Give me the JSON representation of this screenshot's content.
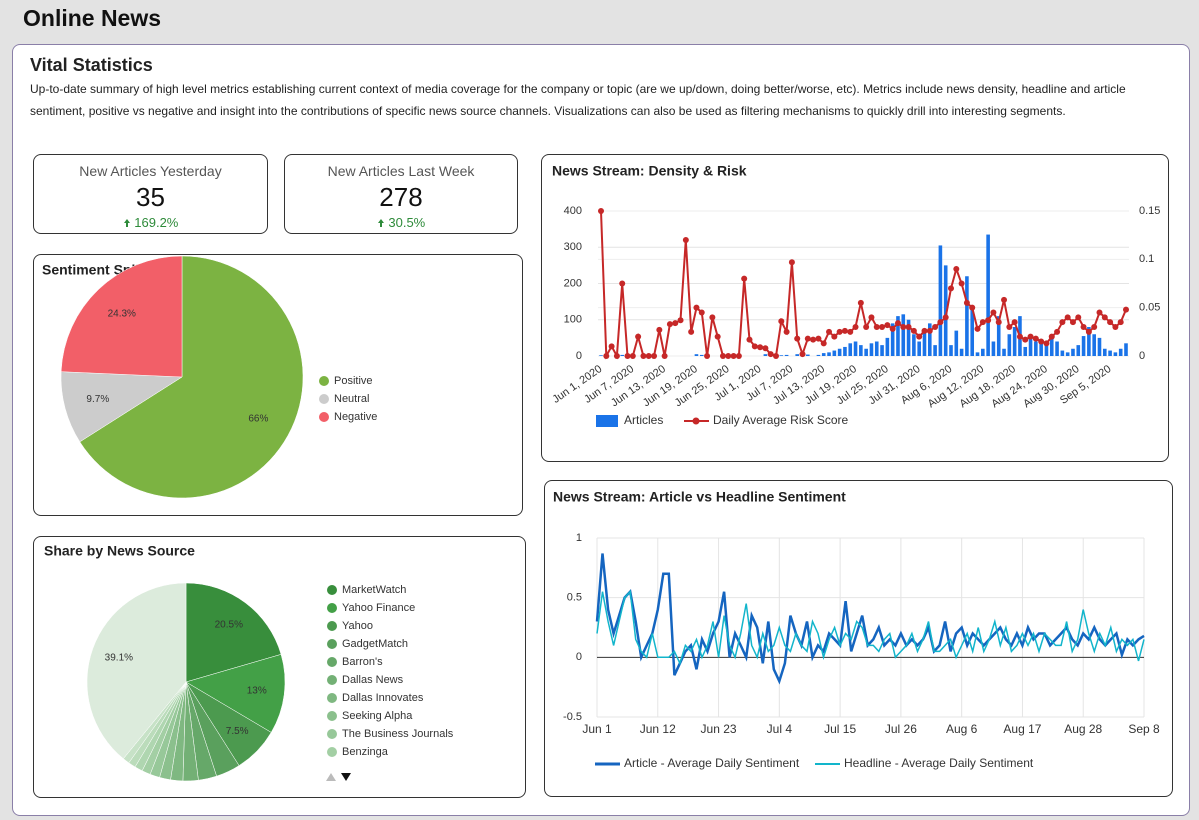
{
  "header": {
    "title": "Online News"
  },
  "section": {
    "title": "Vital Statistics",
    "description": "Up-to-date summary of high level metrics establishing current context of media coverage for the company or topic (are we up/down, doing better/worse, etc). Metrics include news density, headline and article sentiment, positive vs negative and insight into the contributions of specific news source channels.  Visualizations can also be used as filtering mechanisms to quickly drill into interesting segments."
  },
  "scorecards": [
    {
      "label": "New Articles Yesterday",
      "value": 35,
      "change": "169.2%"
    },
    {
      "label": "New Articles Last Week",
      "value": 278,
      "change": "30.5%"
    }
  ],
  "chart_data": [
    {
      "type": "pie",
      "title": "Sentiment Split",
      "categories": [
        "Positive",
        "Neutral",
        "Negative"
      ],
      "values": [
        66,
        9.7,
        24.3
      ],
      "value_labels": [
        "66%",
        "9.7%",
        "24.3%"
      ],
      "colors": [
        "#7cb342",
        "#cccccc",
        "#f25f68"
      ]
    },
    {
      "type": "pie",
      "title": "Share by News Source",
      "categories": [
        "MarketWatch",
        "Yahoo Finance",
        "Yahoo",
        "GadgetMatch",
        "Barron's",
        "Dallas News",
        "Dallas Innovates",
        "Seeking Alpha",
        "The Business Journals",
        "Benzinga",
        null,
        null,
        null,
        null
      ],
      "values": [
        20.5,
        13,
        7.5,
        4,
        3,
        2.5,
        2,
        1.8,
        1.6,
        1.4,
        1.3,
        1.2,
        1.1,
        39.1
      ],
      "value_labels": [
        "20.5%",
        "13%",
        "7.5%",
        null,
        null,
        null,
        null,
        null,
        null,
        null,
        null,
        null,
        null,
        "39.1%"
      ],
      "colors": [
        "#388e3c",
        "#43a047",
        "#4c9a4f",
        "#5aa05d",
        "#66a869",
        "#73b075",
        "#7fb881",
        "#8bc08d",
        "#97c899",
        "#a3cfa4",
        "#afd6b0",
        "#bbdcbb",
        "#c7e2c7",
        "#dcebdc"
      ]
    },
    {
      "type": "bar",
      "title": "News Stream: Density & Risk",
      "categories": [
        "Jun 1, 2020",
        null,
        null,
        null,
        null,
        null,
        "Jun 7, 2020",
        null,
        null,
        null,
        null,
        null,
        "Jun 13, 2020",
        null,
        null,
        null,
        null,
        null,
        "Jun 19, 2020",
        null,
        null,
        null,
        null,
        null,
        "Jun 25, 2020",
        null,
        null,
        null,
        null,
        null,
        "Jul 1, 2020",
        null,
        null,
        null,
        null,
        null,
        "Jul 7, 2020",
        null,
        null,
        null,
        null,
        null,
        "Jul 13, 2020",
        null,
        null,
        null,
        null,
        null,
        "Jul 19, 2020",
        null,
        null,
        null,
        null,
        null,
        "Jul 25, 2020",
        null,
        null,
        null,
        null,
        null,
        "Jul 31, 2020",
        null,
        null,
        null,
        null,
        null,
        "Aug 6, 2020",
        null,
        null,
        null,
        null,
        null,
        "Aug 12, 2020",
        null,
        null,
        null,
        null,
        null,
        "Aug 18, 2020",
        null,
        null,
        null,
        null,
        null,
        "Aug 24, 2020",
        null,
        null,
        null,
        null,
        null,
        "Aug 30, 2020",
        null,
        null,
        null,
        null,
        null,
        "Sep 5, 2020",
        null,
        null,
        null
      ],
      "series": [
        {
          "name": "Articles",
          "color": "#1a73e8",
          "values": [
            2,
            0,
            0,
            0,
            3,
            0,
            0,
            0,
            0,
            0,
            0,
            0,
            0,
            0,
            0,
            0,
            0,
            0,
            5,
            3,
            0,
            0,
            0,
            0,
            0,
            0,
            0,
            0,
            0,
            0,
            0,
            5,
            8,
            3,
            2,
            3,
            0,
            5,
            2,
            4,
            0,
            3,
            8,
            10,
            15,
            20,
            25,
            35,
            40,
            30,
            20,
            35,
            40,
            30,
            50,
            90,
            110,
            115,
            100,
            60,
            40,
            70,
            90,
            30,
            305,
            250,
            30,
            70,
            20,
            220,
            130,
            10,
            20,
            335,
            40,
            110,
            20,
            60,
            80,
            110,
            25,
            50,
            40,
            45,
            40,
            50,
            40,
            15,
            10,
            20,
            30,
            55,
            80,
            60,
            50,
            20,
            15,
            10,
            20,
            35
          ]
        },
        {
          "name": "Daily Average Risk Score",
          "color": "#c62828",
          "type": "line",
          "axis": "y2",
          "values": [
            0.15,
            0,
            0.01,
            0,
            0.075,
            0,
            0,
            0.02,
            0,
            0,
            0,
            0.027,
            0,
            0.033,
            0.034,
            0.037,
            0.12,
            0.025,
            0.05,
            0.045,
            0,
            0.04,
            0.02,
            0,
            0,
            0,
            0,
            0.08,
            0.017,
            0.01,
            0.009,
            0.008,
            0.002,
            0,
            0.036,
            0.025,
            0.097,
            0.018,
            0.002,
            0.018,
            0.017,
            0.018,
            0.013,
            0.025,
            0.02,
            0.025,
            0.026,
            0.025,
            0.03,
            0.055,
            0.03,
            0.04,
            0.03,
            0.03,
            0.032,
            0.028,
            0.034,
            0.03,
            0.03,
            0.026,
            0.02,
            0.026,
            0.026,
            0.03,
            0.035,
            0.04,
            0.07,
            0.09,
            0.075,
            0.055,
            0.05,
            0.028,
            0.035,
            0.037,
            0.045,
            0.035,
            0.058,
            0.03,
            0.035,
            0.02,
            0.017,
            0.02,
            0.018,
            0.015,
            0.013,
            0.02,
            0.025,
            0.035,
            0.04,
            0.035,
            0.04,
            0.03,
            0.025,
            0.03,
            0.045,
            0.04,
            0.035,
            0.03,
            0.035,
            0.048
          ]
        }
      ],
      "ylim": [
        0,
        400
      ],
      "yticks": [
        0,
        100,
        200,
        300,
        400
      ],
      "y2lim": [
        0,
        0.15
      ],
      "y2ticks": [
        0,
        0.05,
        0.1,
        0.15
      ],
      "grid": true
    },
    {
      "type": "line",
      "title": "News Stream: Article vs Headline Sentiment",
      "categories": [
        "Jun 1",
        null,
        null,
        null,
        null,
        null,
        null,
        null,
        null,
        null,
        null,
        "Jun 12",
        null,
        null,
        null,
        null,
        null,
        null,
        null,
        null,
        null,
        null,
        "Jun 23",
        null,
        null,
        null,
        null,
        null,
        null,
        null,
        null,
        null,
        null,
        "Jul 4",
        null,
        null,
        null,
        null,
        null,
        null,
        null,
        null,
        null,
        null,
        "Jul 15",
        null,
        null,
        null,
        null,
        null,
        null,
        null,
        null,
        null,
        null,
        "Jul 26",
        null,
        null,
        null,
        null,
        null,
        null,
        null,
        null,
        null,
        null,
        "Aug 6",
        null,
        null,
        null,
        null,
        null,
        null,
        null,
        null,
        null,
        null,
        "Aug 17",
        null,
        null,
        null,
        null,
        null,
        null,
        null,
        null,
        null,
        null,
        "Aug 28",
        null,
        null,
        null,
        null,
        null,
        null,
        null,
        null,
        null,
        null,
        "Sep 8"
      ],
      "series": [
        {
          "name": "Article - Average Daily Sentiment",
          "color": "#1565c0",
          "values": [
            0.3,
            0.87,
            0.4,
            0.2,
            0.35,
            0.5,
            0.55,
            0.3,
            0,
            0.1,
            0.2,
            0.4,
            0.7,
            0.7,
            -0.15,
            -0.05,
            0.05,
            0.1,
            -0.1,
            0.15,
            0.05,
            0.2,
            0.3,
            0.55,
            0,
            0.2,
            0.1,
            0,
            0.35,
            0.25,
            -0.05,
            0.3,
            -0.1,
            -0.2,
            -0.05,
            0.35,
            0.2,
            0.1,
            0.3,
            0,
            0.1,
            0.05,
            0.2,
            0.15,
            0.1,
            0.47,
            0.05,
            0.2,
            0.35,
            0.1,
            0.15,
            0.25,
            0.1,
            0.15,
            0.1,
            0.2,
            0.1,
            0.15,
            0.1,
            0.15,
            0.25,
            0.05,
            0.1,
            0.3,
            0.05,
            0.2,
            0.25,
            0.1,
            0.2,
            0.15,
            0.1,
            0.15,
            0.2,
            0.25,
            0.15,
            0.1,
            0.2,
            0.1,
            0.25,
            0.15,
            0.2,
            0.2,
            0.1,
            0.15,
            0.2,
            0.25,
            0.15,
            0.1,
            0.2,
            0.15,
            0.25,
            0.15,
            0.1,
            0.15,
            0.2,
            0.02,
            0.15,
            0.1,
            0.15,
            0.18
          ]
        },
        {
          "name": "Headline - Average Daily Sentiment",
          "color": "#12b5cb",
          "values": [
            0.2,
            0.55,
            0.3,
            0.1,
            0.3,
            0.5,
            0.55,
            0.15,
            0.05,
            0,
            0.2,
            0,
            0,
            0,
            0.05,
            -0.05,
            0.1,
            0.05,
            0.15,
            0,
            0.1,
            0.3,
            0,
            0.35,
            0.1,
            0,
            0.2,
            0.45,
            0.1,
            0,
            0.2,
            0.05,
            0.1,
            0.25,
            0.1,
            0.05,
            0.2,
            0.1,
            0.05,
            0.3,
            0.2,
            0,
            0.15,
            0.25,
            0.1,
            0.2,
            0.15,
            0.3,
            0.25,
            0.1,
            0.1,
            0.05,
            0.15,
            0.2,
            0,
            0.05,
            0.1,
            0.2,
            0.05,
            0.15,
            0.3,
            0.05,
            0.05,
            0.1,
            0.15,
            0,
            0.1,
            0.2,
            0.05,
            0.25,
            0.05,
            0.15,
            0.3,
            0.1,
            0.25,
            0.05,
            0.1,
            0.2,
            0.1,
            0.2,
            0.05,
            0.2,
            0.15,
            0.1,
            0.1,
            0.3,
            0.05,
            0.15,
            0.4,
            0.2,
            0.05,
            0.2,
            0.1,
            0.25,
            0.05,
            0.15,
            0.1,
            0.15,
            -0.03,
            0.15
          ]
        }
      ],
      "ylim": [
        -0.5,
        1
      ],
      "yticks": [
        -0.5,
        0,
        0.5,
        1
      ],
      "grid": true
    }
  ]
}
